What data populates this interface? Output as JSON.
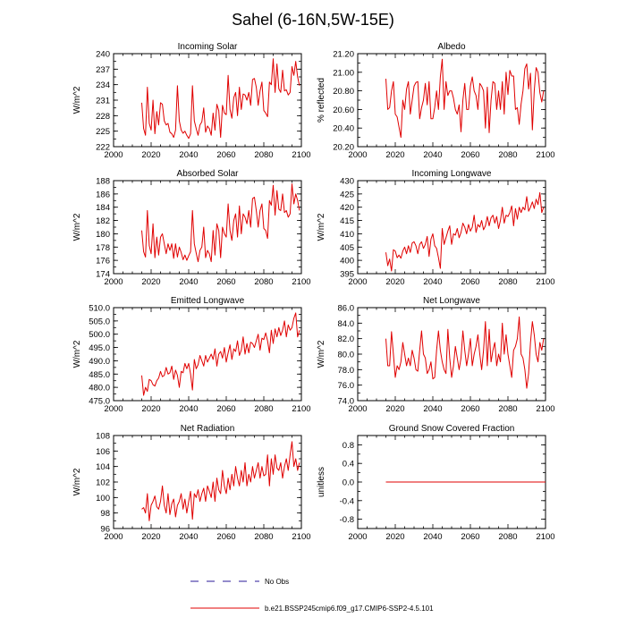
{
  "figure_title": "Sahel (6-16N,5W-15E)",
  "legend": {
    "obs_label": "No Obs",
    "model_label": "b.e21.BSSP245cmip6.f09_g17.CMIP6-SSP2-4.5.101",
    "obs_color": "#2a1a9a",
    "model_color": "#e00000"
  },
  "chart_data": [
    {
      "type": "line",
      "title": "Incoming Solar",
      "ylabel": "W/m^2",
      "xlim": [
        2000,
        2100
      ],
      "ylim": [
        222,
        240
      ],
      "xticks": [
        "2000",
        "2020",
        "2040",
        "2060",
        "2080",
        "2100"
      ],
      "yticks": [
        "222",
        "225",
        "228",
        "231",
        "234",
        "237",
        "240"
      ],
      "ytick_values": [
        222,
        225,
        228,
        231,
        234,
        237,
        240
      ],
      "series": [
        {
          "name": "b.e21.BSSP245cmip6.f09_g17.CMIP6-SSP2-4.5.101",
          "x_start": 2015,
          "values": [
            230.5,
            225.5,
            224.2,
            233.5,
            226.5,
            225.2,
            231.0,
            224.5,
            228.8,
            226.2,
            230.5,
            230.2,
            227.0,
            226.2,
            226.5,
            224.8,
            224.5,
            223.8,
            225.2,
            233.8,
            227.0,
            225.2,
            224.6,
            225.0,
            224.2,
            223.6,
            224.5,
            233.8,
            227.0,
            225.5,
            224.2,
            226.2,
            226.8,
            229.5,
            224.8,
            226.0,
            225.5,
            224.2,
            228.5,
            225.2,
            230.2,
            229.0,
            223.8,
            230.0,
            228.5,
            228.2,
            235.8,
            229.2,
            227.5,
            231.5,
            232.5,
            228.0,
            233.5,
            229.2,
            232.2,
            232.0,
            231.0,
            232.5,
            230.0,
            235.0,
            235.2,
            233.5,
            230.0,
            232.8,
            234.5,
            229.0,
            228.5,
            227.8,
            234.5,
            234.0,
            239.0,
            232.5,
            238.0,
            233.2,
            232.5,
            236.8,
            232.8,
            233.0,
            232.0,
            232.5,
            237.5,
            235.8,
            238.5,
            235.5,
            233.8
          ]
        }
      ]
    },
    {
      "type": "line",
      "title": "Albedo",
      "ylabel": "% reflected",
      "xlim": [
        2000,
        2100
      ],
      "ylim": [
        20.2,
        21.2
      ],
      "xticks": [
        "2000",
        "2020",
        "2040",
        "2060",
        "2080",
        "2100"
      ],
      "yticks": [
        "20.20",
        "20.40",
        "20.60",
        "20.80",
        "21.00",
        "21.20"
      ],
      "ytick_values": [
        20.2,
        20.4,
        20.6,
        20.8,
        21.0,
        21.2
      ],
      "series": [
        {
          "name": "b.e21.BSSP245cmip6.f09_g17.CMIP6-SSP2-4.5.101",
          "x_start": 2015,
          "values": [
            20.93,
            20.6,
            20.62,
            20.8,
            20.9,
            20.55,
            20.52,
            20.41,
            20.3,
            20.7,
            20.6,
            20.82,
            20.9,
            20.55,
            20.7,
            20.85,
            20.89,
            20.9,
            20.5,
            20.62,
            20.7,
            20.88,
            20.65,
            20.9,
            20.5,
            20.5,
            20.62,
            20.8,
            20.6,
            20.95,
            21.14,
            20.6,
            20.9,
            20.75,
            20.8,
            20.8,
            20.72,
            20.6,
            20.55,
            20.65,
            20.36,
            20.7,
            20.88,
            20.6,
            20.6,
            20.85,
            20.95,
            20.8,
            20.75,
            20.6,
            20.88,
            20.85,
            20.8,
            20.4,
            20.84,
            20.35,
            20.7,
            20.9,
            20.88,
            20.6,
            20.8,
            20.6,
            20.9,
            20.55,
            21.0,
            20.76,
            21.02,
            20.96,
            20.96,
            20.6,
            20.62,
            20.44,
            20.66,
            20.8,
            21.04,
            21.09,
            20.82,
            20.99,
            20.38,
            20.8,
            21.05,
            21.0,
            20.78,
            20.68,
            20.8
          ]
        }
      ]
    },
    {
      "type": "line",
      "title": "Absorbed Solar",
      "ylabel": "W/m^2",
      "xlim": [
        2000,
        2100
      ],
      "ylim": [
        174,
        188
      ],
      "xticks": [
        "2000",
        "2020",
        "2040",
        "2060",
        "2080",
        "2100"
      ],
      "yticks": [
        "174",
        "176",
        "178",
        "180",
        "182",
        "184",
        "186",
        "188"
      ],
      "ytick_values": [
        174,
        176,
        178,
        180,
        182,
        184,
        186,
        188
      ],
      "series": [
        {
          "name": "b.e21.BSSP245cmip6.f09_g17.CMIP6-SSP2-4.5.101",
          "x_start": 2015,
          "values": [
            180.5,
            177.3,
            176.5,
            183.5,
            178.2,
            177.0,
            181.5,
            176.4,
            179.5,
            176.8,
            179.5,
            180.0,
            178.5,
            177.0,
            178.5,
            177.5,
            178.5,
            176.3,
            178.5,
            176.5,
            178.0,
            177.2,
            176.1,
            176.8,
            176.0,
            176.7,
            177.3,
            183.5,
            178.5,
            177.1,
            175.8,
            177.5,
            178.0,
            181.0,
            176.4,
            177.5,
            177.0,
            175.8,
            180.5,
            176.8,
            181.5,
            180.5,
            176.4,
            181.0,
            180.0,
            179.5,
            184.5,
            180.5,
            179.0,
            182.0,
            183.0,
            179.5,
            184.2,
            180.0,
            183.0,
            182.5,
            181.5,
            183.5,
            181.0,
            185.3,
            185.5,
            183.5,
            181.0,
            183.5,
            184.5,
            180.8,
            180.5,
            179.3,
            185.0,
            184.3,
            187.3,
            182.8,
            186.5,
            183.7,
            183.5,
            186.0,
            183.2,
            183.5,
            182.5,
            183.0,
            187.5,
            184.5,
            186.0,
            185.0,
            183.5
          ]
        }
      ]
    },
    {
      "type": "line",
      "title": "Incoming Longwave",
      "ylabel": "W/m^2",
      "xlim": [
        2000,
        2100
      ],
      "ylim": [
        395,
        430
      ],
      "xticks": [
        "2000",
        "2020",
        "2040",
        "2060",
        "2080",
        "2100"
      ],
      "yticks": [
        "395",
        "400",
        "405",
        "410",
        "415",
        "420",
        "425",
        "430"
      ],
      "ytick_values": [
        395,
        400,
        405,
        410,
        415,
        420,
        425,
        430
      ],
      "series": [
        {
          "name": "b.e21.BSSP245cmip6.f09_g17.CMIP6-SSP2-4.5.101",
          "x_start": 2015,
          "values": [
            403.0,
            398.0,
            400.5,
            396.0,
            404.0,
            403.5,
            401.0,
            402.0,
            400.8,
            403.5,
            405.0,
            402.5,
            405.5,
            403.0,
            406.5,
            407.0,
            405.5,
            402.5,
            406.0,
            407.0,
            404.5,
            406.0,
            409.0,
            401.5,
            408.0,
            410.0,
            405.5,
            404.5,
            401.0,
            397.0,
            412.0,
            406.0,
            408.5,
            411.0,
            413.0,
            406.0,
            410.0,
            409.5,
            412.0,
            408.5,
            410.5,
            414.0,
            412.5,
            410.0,
            413.5,
            411.0,
            412.5,
            417.0,
            410.5,
            413.5,
            412.5,
            415.0,
            411.5,
            413.0,
            416.5,
            413.0,
            416.0,
            417.0,
            414.0,
            416.5,
            412.0,
            415.0,
            420.0,
            414.0,
            417.0,
            416.5,
            418.0,
            420.5,
            413.0,
            419.5,
            415.5,
            420.0,
            418.0,
            420.0,
            419.0,
            424.0,
            418.5,
            420.0,
            422.0,
            419.5,
            423.0,
            421.0,
            425.5,
            418.0,
            420.0
          ]
        }
      ]
    },
    {
      "type": "line",
      "title": "Emitted Longwave",
      "ylabel": "W/m^2",
      "xlim": [
        2000,
        2100
      ],
      "ylim": [
        475,
        510
      ],
      "xticks": [
        "2000",
        "2020",
        "2040",
        "2060",
        "2080",
        "2100"
      ],
      "yticks": [
        "475.0",
        "480.0",
        "485.0",
        "490.0",
        "495.0",
        "500.0",
        "505.0",
        "510.0"
      ],
      "ytick_values": [
        475,
        480,
        485,
        490,
        495,
        500,
        505,
        510
      ],
      "series": [
        {
          "name": "b.e21.BSSP245cmip6.f09_g17.CMIP6-SSP2-4.5.101",
          "x_start": 2015,
          "values": [
            484.5,
            477.0,
            480.0,
            478.5,
            483.0,
            482.5,
            481.0,
            480.5,
            482.5,
            483.5,
            486.0,
            484.0,
            484.5,
            487.5,
            485.0,
            485.5,
            488.0,
            483.0,
            486.5,
            484.5,
            480.0,
            486.0,
            485.5,
            489.0,
            487.0,
            489.0,
            485.0,
            479.0,
            490.5,
            487.0,
            488.5,
            492.0,
            490.0,
            488.0,
            492.0,
            489.5,
            491.0,
            492.5,
            490.5,
            494.5,
            488.0,
            492.5,
            493.5,
            491.0,
            495.0,
            489.5,
            493.0,
            496.0,
            490.5,
            494.5,
            493.5,
            497.5,
            492.0,
            494.0,
            499.0,
            492.5,
            496.5,
            493.0,
            497.0,
            496.5,
            495.0,
            497.5,
            500.0,
            494.0,
            498.5,
            498.0,
            500.5,
            497.5,
            493.0,
            501.5,
            496.5,
            502.0,
            499.0,
            502.5,
            499.5,
            501.5,
            505.0,
            499.0,
            503.5,
            501.5,
            502.5,
            506.0,
            508.0,
            499.0,
            501.5
          ]
        }
      ]
    },
    {
      "type": "line",
      "title": "Net Longwave",
      "ylabel": "W/m^2",
      "xlim": [
        2000,
        2100
      ],
      "ylim": [
        74,
        86
      ],
      "xticks": [
        "2000",
        "2020",
        "2040",
        "2060",
        "2080",
        "2100"
      ],
      "yticks": [
        "74.0",
        "76.0",
        "78.0",
        "80.0",
        "82.0",
        "84.0",
        "86.0"
      ],
      "ytick_values": [
        74,
        76,
        78,
        80,
        82,
        84,
        86
      ],
      "series": [
        {
          "name": "b.e21.BSSP245cmip6.f09_g17.CMIP6-SSP2-4.5.101",
          "x_start": 2015,
          "values": [
            82.0,
            78.5,
            78.5,
            82.9,
            80.0,
            77.0,
            78.5,
            78.0,
            79.0,
            81.5,
            80.0,
            78.5,
            79.5,
            78.5,
            80.5,
            79.5,
            78.0,
            77.8,
            80.5,
            83.0,
            80.0,
            79.5,
            77.5,
            78.0,
            79.0,
            76.8,
            77.0,
            80.5,
            83.0,
            80.5,
            79.0,
            78.0,
            77.5,
            83.2,
            79.5,
            77.0,
            78.5,
            81.0,
            79.5,
            78.0,
            79.5,
            83.0,
            80.5,
            78.5,
            80.0,
            82.0,
            78.5,
            80.0,
            81.0,
            82.5,
            80.0,
            78.0,
            80.5,
            84.2,
            78.5,
            83.2,
            79.0,
            80.5,
            81.5,
            78.5,
            80.0,
            79.0,
            84.0,
            80.0,
            82.5,
            80.0,
            78.5,
            77.0,
            80.5,
            81.0,
            82.0,
            84.8,
            80.0,
            79.5,
            78.0,
            75.6,
            77.5,
            81.5,
            84.2,
            82.5,
            80.0,
            79.0,
            81.5,
            80.5,
            82.0
          ]
        }
      ]
    },
    {
      "type": "line",
      "title": "Net Radiation",
      "ylabel": "W/m^2",
      "xlim": [
        2000,
        2100
      ],
      "ylim": [
        96,
        108
      ],
      "xticks": [
        "2000",
        "2020",
        "2040",
        "2060",
        "2080",
        "2100"
      ],
      "yticks": [
        "96",
        "98",
        "100",
        "102",
        "104",
        "106",
        "108"
      ],
      "ytick_values": [
        96,
        98,
        100,
        102,
        104,
        106,
        108
      ],
      "series": [
        {
          "name": "b.e21.BSSP245cmip6.f09_g17.CMIP6-SSP2-4.5.101",
          "x_start": 2015,
          "values": [
            98.5,
            98.7,
            98.0,
            100.5,
            97.0,
            99.0,
            99.5,
            100.2,
            98.8,
            98.5,
            99.5,
            101.5,
            99.0,
            98.0,
            100.5,
            97.8,
            99.2,
            99.8,
            97.5,
            99.0,
            99.5,
            100.5,
            98.5,
            99.8,
            98.0,
            99.5,
            100.8,
            97.2,
            100.5,
            100.0,
            101.0,
            99.5,
            100.5,
            101.2,
            99.5,
            101.5,
            100.8,
            100.0,
            102.0,
            99.5,
            102.5,
            101.0,
            100.5,
            103.5,
            101.5,
            100.5,
            102.5,
            101.0,
            103.0,
            101.5,
            104.0,
            102.5,
            101.5,
            103.5,
            102.0,
            104.5,
            101.5,
            103.0,
            102.0,
            104.0,
            102.5,
            103.5,
            104.5,
            102.5,
            104.0,
            102.8,
            103.0,
            105.5,
            101.5,
            105.0,
            103.0,
            105.5,
            103.8,
            103.5,
            104.5,
            102.5,
            104.0,
            105.0,
            103.5,
            105.5,
            107.2,
            104.0,
            105.0,
            103.5,
            104.5
          ]
        }
      ]
    },
    {
      "type": "line",
      "title": "Ground Snow Covered Fraction",
      "ylabel": "unitless",
      "xlim": [
        2000,
        2100
      ],
      "ylim": [
        -1,
        1
      ],
      "xticks": [
        "2000",
        "2020",
        "2040",
        "2060",
        "2080",
        "2100"
      ],
      "yticks": [
        "-0.8",
        "-0.4",
        "0.0",
        "0.4",
        "0.8"
      ],
      "ytick_values": [
        -0.8,
        -0.4,
        0.0,
        0.4,
        0.8
      ],
      "series": [
        {
          "name": "b.e21.BSSP245cmip6.f09_g17.CMIP6-SSP2-4.5.101",
          "x_start": 2015,
          "values": [
            0.0,
            0.0
          ],
          "x_end": 2100
        }
      ]
    }
  ]
}
